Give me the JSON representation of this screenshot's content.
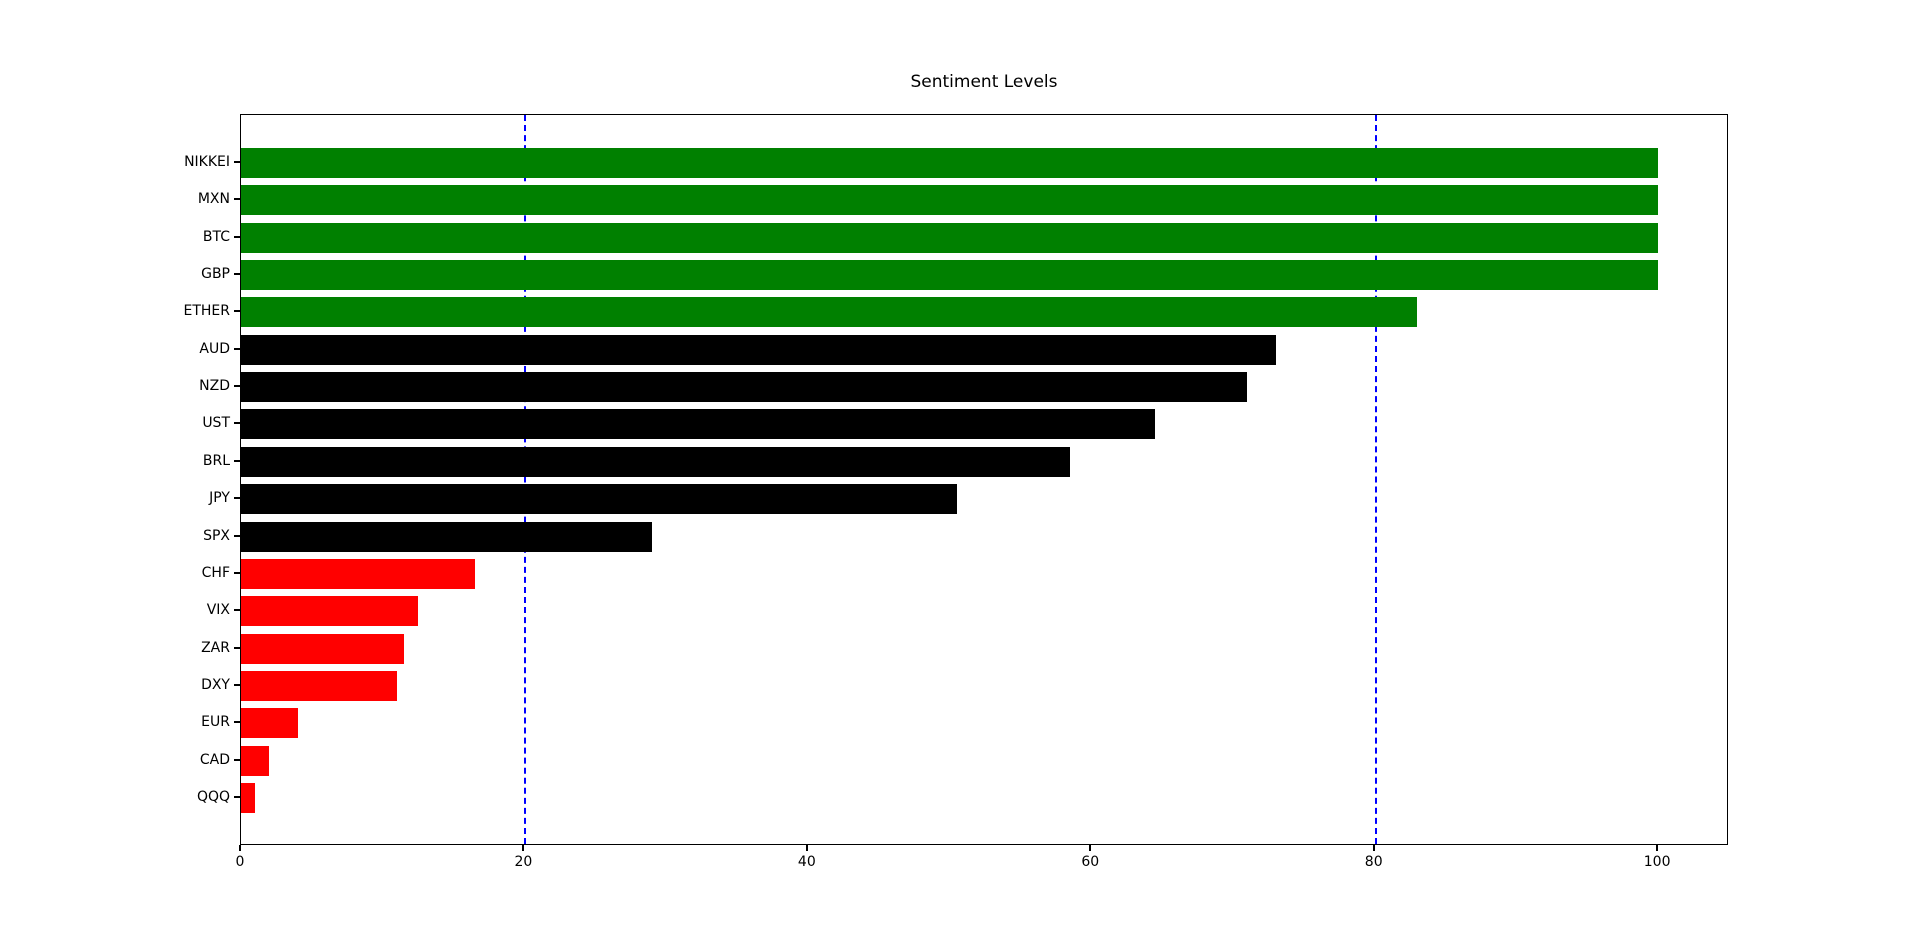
{
  "figure": {
    "background_color": "#ffffff",
    "axes_border_color": "#000000"
  },
  "chart_data": {
    "type": "bar",
    "orientation": "horizontal",
    "title": "Sentiment Levels",
    "xlabel": "",
    "ylabel": "",
    "categories": [
      "NIKKEI",
      "MXN",
      "BTC",
      "GBP",
      "ETHER",
      "AUD",
      "NZD",
      "UST",
      "BRL",
      "JPY",
      "SPX",
      "CHF",
      "VIX",
      "ZAR",
      "DXY",
      "EUR",
      "CAD",
      "QQQ"
    ],
    "values": [
      100,
      100,
      100,
      100,
      83,
      73,
      71,
      64.5,
      58.5,
      50.5,
      29,
      16.5,
      12.5,
      11.5,
      11,
      4,
      2,
      1
    ],
    "bar_colors": [
      "#008000",
      "#008000",
      "#008000",
      "#008000",
      "#008000",
      "#000000",
      "#000000",
      "#000000",
      "#000000",
      "#000000",
      "#000000",
      "#ff0000",
      "#ff0000",
      "#ff0000",
      "#ff0000",
      "#ff0000",
      "#ff0000",
      "#ff0000"
    ],
    "color_meaning": {
      "positive": "#008000",
      "neutral": "#000000",
      "negative": "#ff0000"
    },
    "threshold_lines": [
      {
        "x": 20,
        "color": "#0000ff",
        "style": "dashed"
      },
      {
        "x": 80,
        "color": "#0000ff",
        "style": "dashed"
      }
    ],
    "xlim": [
      0,
      105
    ],
    "xticks": [
      0,
      20,
      40,
      60,
      80,
      100
    ],
    "grid": false,
    "legend_position": "none"
  }
}
